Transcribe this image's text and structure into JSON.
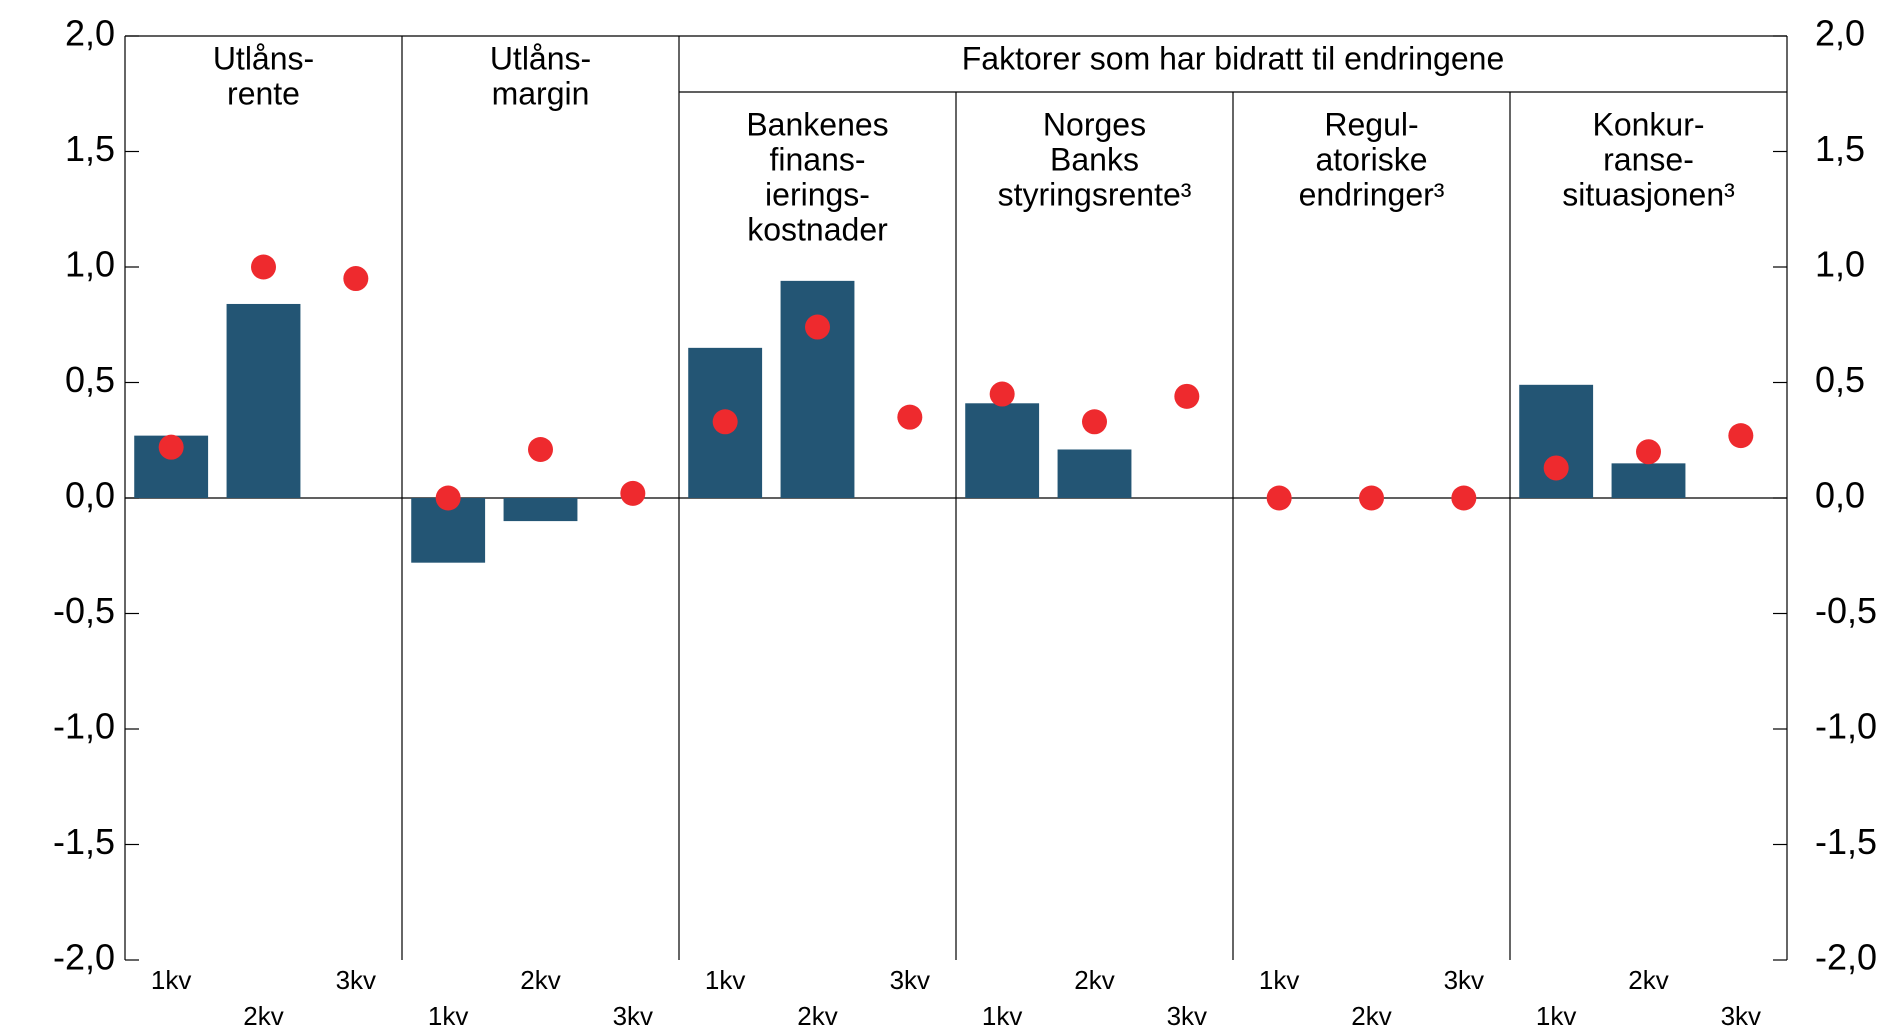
{
  "chart_data": {
    "type": "bar",
    "categories": [
      "1kv",
      "2kv",
      "3kv",
      "1kv",
      "2kv",
      "3kv",
      "1kv",
      "2kv",
      "3kv",
      "1kv",
      "2kv",
      "3kv",
      "1kv",
      "2kv",
      "3kv",
      "1kv",
      "2kv",
      "3kv"
    ],
    "groups": [
      {
        "label": [
          "Utlåns-",
          "rente"
        ]
      },
      {
        "label": [
          "Utlåns-",
          "margin"
        ]
      },
      {
        "label": [
          "Bankenes",
          "finans-",
          "ierings-",
          "kostnader"
        ]
      },
      {
        "label": [
          "Norges",
          "Banks",
          "styringsrente³"
        ]
      },
      {
        "label": [
          "Regul-",
          "atoriske",
          "endringer³"
        ]
      },
      {
        "label": [
          "Konkur-",
          "ranse-",
          "situasjonen³"
        ]
      }
    ],
    "header": "Faktorer som har bidratt til endringene",
    "series": [
      {
        "type": "bar",
        "color": "#235574",
        "values": [
          0.27,
          0.84,
          null,
          -0.28,
          -0.1,
          null,
          0.65,
          0.94,
          null,
          0.41,
          0.21,
          null,
          null,
          null,
          null,
          0.49,
          0.15,
          null
        ]
      },
      {
        "type": "scatter",
        "color": "#ee2a2e",
        "values": [
          0.22,
          1.0,
          0.95,
          0.0,
          0.21,
          0.02,
          0.33,
          0.74,
          0.35,
          0.45,
          0.33,
          0.44,
          0.0,
          0.0,
          0.0,
          0.13,
          0.2,
          0.27
        ]
      }
    ],
    "ylim": [
      -2,
      2
    ],
    "yticks": [
      {
        "value": -2,
        "label": "-2,0"
      },
      {
        "value": -1.5,
        "label": "-1,5"
      },
      {
        "value": -1,
        "label": "-1,0"
      },
      {
        "value": -0.5,
        "label": "-0,5"
      },
      {
        "value": 0,
        "label": "0,0"
      },
      {
        "value": 0.5,
        "label": "0,5"
      },
      {
        "value": 1,
        "label": "1,0"
      },
      {
        "value": 1.5,
        "label": "1,5"
      },
      {
        "value": 2,
        "label": "2,0"
      }
    ],
    "y2lim": [
      -2,
      2
    ],
    "y2ticks": [
      {
        "value": -2,
        "label": "-2,0"
      },
      {
        "value": -1.5,
        "label": "-1,5"
      },
      {
        "value": -1,
        "label": "-1,0"
      },
      {
        "value": -0.5,
        "label": "-0,5"
      },
      {
        "value": 0,
        "label": "0,0"
      },
      {
        "value": 0.5,
        "label": "0,5"
      },
      {
        "value": 1,
        "label": "1,0"
      },
      {
        "value": 1.5,
        "label": "1,5"
      },
      {
        "value": 2,
        "label": "2,0"
      }
    ]
  }
}
